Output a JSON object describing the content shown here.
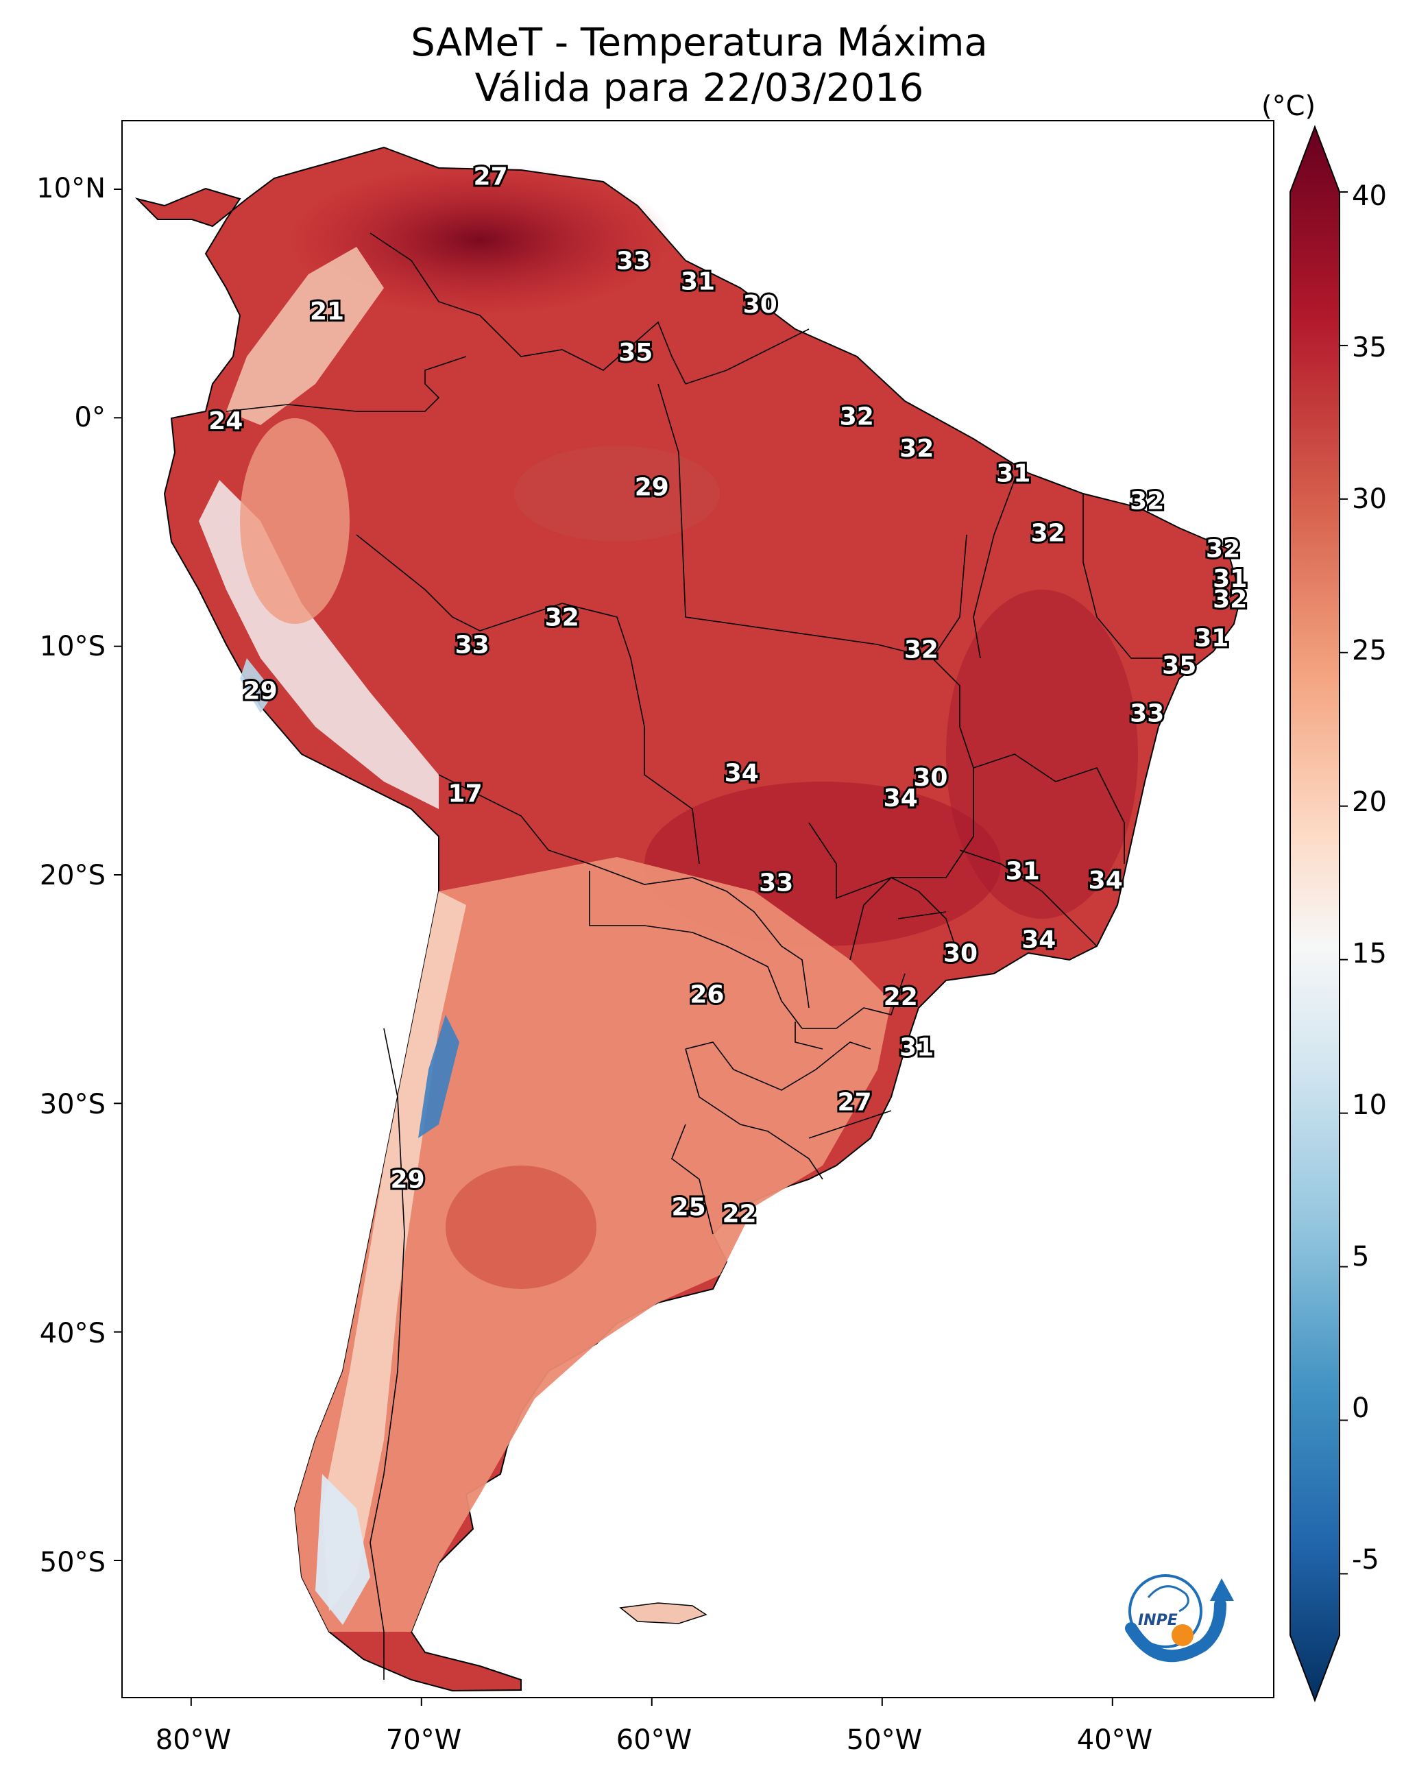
{
  "title": {
    "line1": "SAMeT - Temperatura Máxima",
    "line2": "Válida para 22/03/2016"
  },
  "axes": {
    "lat_labels": [
      "10°N",
      "0°",
      "10°S",
      "20°S",
      "30°S",
      "40°S",
      "50°S"
    ],
    "lon_labels": [
      "80°W",
      "70°W",
      "60°W",
      "50°W",
      "40°W"
    ],
    "lon_range": [
      -83,
      -33
    ],
    "lat_range": [
      -56,
      13
    ]
  },
  "colorbar": {
    "units": "(°C)",
    "ticks": [
      "40",
      "35",
      "30",
      "25",
      "20",
      "15",
      "10",
      "5",
      "0",
      "-5"
    ],
    "min": -7,
    "max": 40,
    "colors": [
      "#053061",
      "#2166ac",
      "#4393c3",
      "#92c5de",
      "#d1e5f0",
      "#f7f7f7",
      "#fddbc7",
      "#f4a582",
      "#d6604d",
      "#b2182b",
      "#67001f"
    ]
  },
  "land_colors": {
    "hot": "#b2182b",
    "very_hot": "#8a0f24",
    "warm": "#e8826c",
    "mild": "#f4b59c",
    "cool": "#eef3f7",
    "cold": "#5a9bd4"
  },
  "cities": [
    {
      "label": "27",
      "lon": -67.0,
      "lat": 10.5
    },
    {
      "label": "33",
      "lon": -60.8,
      "lat": 6.8
    },
    {
      "label": "31",
      "lon": -58.0,
      "lat": 5.9
    },
    {
      "label": "30",
      "lon": -55.3,
      "lat": 4.9
    },
    {
      "label": "21",
      "lon": -74.1,
      "lat": 4.6
    },
    {
      "label": "35",
      "lon": -60.7,
      "lat": 2.8
    },
    {
      "label": "24",
      "lon": -78.5,
      "lat": -0.2
    },
    {
      "label": "32",
      "lon": -51.1,
      "lat": 0.0
    },
    {
      "label": "32",
      "lon": -48.5,
      "lat": -1.4
    },
    {
      "label": "31",
      "lon": -44.3,
      "lat": -2.5
    },
    {
      "label": "29",
      "lon": -60.0,
      "lat": -3.1
    },
    {
      "label": "32",
      "lon": -38.5,
      "lat": -3.7
    },
    {
      "label": "32",
      "lon": -42.8,
      "lat": -5.1
    },
    {
      "label": "32",
      "lon": -35.2,
      "lat": -5.8
    },
    {
      "label": "31",
      "lon": -34.9,
      "lat": -7.1
    },
    {
      "label": "32",
      "lon": -34.9,
      "lat": -8.0
    },
    {
      "label": "32",
      "lon": -63.9,
      "lat": -8.8
    },
    {
      "label": "32",
      "lon": -48.3,
      "lat": -10.2
    },
    {
      "label": "33",
      "lon": -67.8,
      "lat": -10.0
    },
    {
      "label": "31",
      "lon": -35.7,
      "lat": -9.7
    },
    {
      "label": "35",
      "lon": -37.1,
      "lat": -10.9
    },
    {
      "label": "29",
      "lon": -77.0,
      "lat": -12.0
    },
    {
      "label": "33",
      "lon": -38.5,
      "lat": -13.0
    },
    {
      "label": "34",
      "lon": -56.1,
      "lat": -15.6
    },
    {
      "label": "30",
      "lon": -47.9,
      "lat": -15.8
    },
    {
      "label": "34",
      "lon": -49.2,
      "lat": -16.7
    },
    {
      "label": "17",
      "lon": -68.1,
      "lat": -16.5
    },
    {
      "label": "31",
      "lon": -43.9,
      "lat": -19.9
    },
    {
      "label": "34",
      "lon": -40.3,
      "lat": -20.3
    },
    {
      "label": "33",
      "lon": -54.6,
      "lat": -20.4
    },
    {
      "label": "34",
      "lon": -43.2,
      "lat": -22.9
    },
    {
      "label": "30",
      "lon": -46.6,
      "lat": -23.5
    },
    {
      "label": "26",
      "lon": -57.6,
      "lat": -25.3
    },
    {
      "label": "22",
      "lon": -49.2,
      "lat": -25.4
    },
    {
      "label": "31",
      "lon": -48.5,
      "lat": -27.6
    },
    {
      "label": "27",
      "lon": -51.2,
      "lat": -30.0
    },
    {
      "label": "29",
      "lon": -70.6,
      "lat": -33.4
    },
    {
      "label": "25",
      "lon": -58.4,
      "lat": -34.6
    },
    {
      "label": "22",
      "lon": -56.2,
      "lat": -34.9
    }
  ],
  "logo": {
    "text": "INPE"
  }
}
